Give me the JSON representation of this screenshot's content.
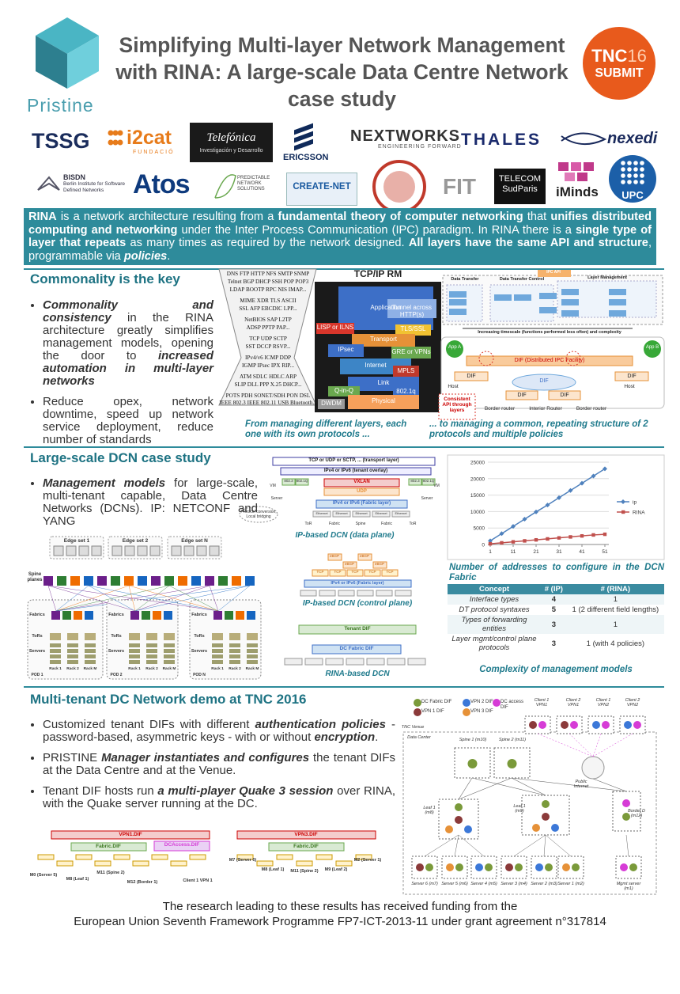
{
  "header": {
    "title": "Simplifying Multi-layer Network Management with RINA: A large-scale Data Centre Network case study",
    "logo": "Pristine",
    "badge": {
      "top": "TNC",
      "number": "16",
      "bottom": "SUBMIT"
    }
  },
  "partners": [
    {
      "name": "TSSG"
    },
    {
      "name": "i2cat",
      "sub": "FUNDACIÓ"
    },
    {
      "name": "Telefónica",
      "sub": "Investigación y Desarrollo"
    },
    {
      "name": "ERICSSON"
    },
    {
      "name": "NEXTWORKS",
      "sub": "ENGINEERING FORWARD"
    },
    {
      "name": "THALES"
    },
    {
      "name": "nexedi"
    },
    {
      "name": "BISDN",
      "sub": "Berlin Institute for Software Defined Networks"
    },
    {
      "name": "Atos"
    },
    {
      "name": "PREDICTABLE NETWORK SOLUTIONS"
    },
    {
      "name": "CREATE-NET"
    },
    {
      "name": "FIT"
    },
    {
      "name": "TELECOM",
      "sub": "SudParis"
    },
    {
      "name": "iMinds"
    },
    {
      "name": "UPC"
    }
  ],
  "intro": [
    {
      "text": "RINA",
      "bold": true
    },
    {
      "text": " is a network architecture resulting from a "
    },
    {
      "text": "fundamental theory of computer networking",
      "bold": true
    },
    {
      "text": " that "
    },
    {
      "text": "unifies distributed computing and networking",
      "bold": true
    },
    {
      "text": " under the Inter Process Communication (IPC) paradigm. In RINA there is a "
    },
    {
      "text": "single type of layer that repeats",
      "bold": true
    },
    {
      "text": " as many times as required by the network designed. "
    },
    {
      "text": "All layers have the same API and structure",
      "bold": true
    },
    {
      "text": ", programmable via "
    },
    {
      "text": "policies",
      "bold": true,
      "italic": true
    },
    {
      "text": "."
    }
  ],
  "commonality": {
    "heading": "Commonality is the key",
    "bullets": [
      [
        {
          "text": "Commonality and consistency",
          "bold": true,
          "italic": true
        },
        {
          "text": " in the RINA architecture greatly simplifies management models, opening the door to "
        },
        {
          "text": "increased automation in multi-layer networks",
          "bold": true,
          "italic": true
        }
      ],
      [
        {
          "text": "Reduce opex, network downtime, speed up network service deployment, reduce number of standards"
        }
      ]
    ],
    "hourglass": [
      "DNS FTP HTTP NFS SMTP SNMP",
      "Telnet BGP DHCP SSH POP POP3",
      "LDAP BOOTP RPC NIS IMAP...",
      "MIME XDR TLS ASCII",
      "SSL AFP EBCDIC LPP...",
      "NetBIOS SAP L2TP",
      "ADSP PPTP PAP...",
      "TCP UDP SCTP",
      "SST DCCP RSVP...",
      "IPv4/v6 ICMP DDP",
      "IGMP IPsec IPX RIP...",
      "ATM SDLC HDLC ARP",
      "SLIP DLL PPP X.25 DHCP...",
      "POTS PDH SONET/SDH PON DSL",
      "IEEE 802.3 IEEE 802.11 USB Bluetooth..."
    ],
    "tcpip": {
      "title": "TCP/IP RM",
      "layers": [
        "Application",
        "Tunnel across HTTP(s)",
        "LISP or ILNS",
        "TLS/SSL",
        "Transport",
        "IPsec",
        "GRE or VPNs",
        "Internet",
        "MPLS",
        "Link",
        "Q-in-Q",
        "802.1q",
        "DWDM",
        "Physical"
      ]
    },
    "rina": [
      "IPC API",
      "Data Transfer",
      "Data Transfer Control",
      "Layer Management",
      "Increasing timescale (functions performed less often) and complexity",
      "App A",
      "App B",
      "DIF (Distributed IPC Facility)",
      "DIF",
      "DIF",
      "DIF",
      "DIF",
      "DIF",
      "Host",
      "Host",
      "Border router",
      "Interior Router",
      "Border router",
      "Consistent API through layers"
    ],
    "captions": [
      "From managing different layers, each one with its own protocols ...",
      "... to managing a common, repeating structure of 2 protocols and multiple policies"
    ]
  },
  "dcn": {
    "heading": "Large-scale DCN case study",
    "bullets": [
      [
        {
          "text": "Management models",
          "bold": true,
          "italic": true
        },
        {
          "text": " for large-scale, multi-tenant capable, Data Centre Networks (DCNs). IP: NETCONF and YANG"
        }
      ]
    ],
    "topology": [
      "Edge set 1",
      "Edge set 2",
      "Edge set N",
      "Spine planes",
      "Fabrics",
      "ToRs",
      "Servers",
      "Rack 1",
      "Rack 2",
      "Rack M",
      "POD 1",
      "POD 2",
      "POD N"
    ],
    "data_plane": {
      "labels": [
        "TCP or UDP or SCTP, ... (transport layer)",
        "IPv4 or IPv6 (tenant overlay)",
        "VXLAN",
        "UDP",
        "IPv4 or IPv6 (Fabric layer)",
        "Protocol conversion; Local bridging",
        "802.3",
        "802.1Q",
        "Server",
        "VM",
        "ToR",
        "Fabric",
        "Spine",
        "Ethernet"
      ],
      "caption": "IP-based DCN (data plane)"
    },
    "control_plane": {
      "labels": [
        "eBGP",
        "TCP",
        "IPv4 or IPv6 (Fabric layer)"
      ],
      "caption": "IP-based DCN (control plane)"
    },
    "rina_dcn": {
      "labels": [
        "Tenant DIF",
        "DC Fabric DIF"
      ],
      "caption": "RINA-based DCN"
    }
  },
  "chart_data": {
    "type": "line",
    "title": "Number of addresses to configure in the DCN Fabric",
    "x": [
      1,
      6,
      11,
      16,
      21,
      26,
      31,
      36,
      41,
      46,
      51
    ],
    "xlim": [
      1,
      51
    ],
    "xticks": [
      1,
      11,
      21,
      31,
      41,
      51
    ],
    "ylim": [
      0,
      25000
    ],
    "yticks": [
      0,
      5000,
      10000,
      15000,
      20000,
      25000
    ],
    "grid": true,
    "legend": "right",
    "series": [
      {
        "name": "ip",
        "color": "#4f81bd",
        "marker": "diamond",
        "values": [
          1100,
          3300,
          5500,
          7700,
          9900,
          12000,
          14200,
          16400,
          18600,
          20800,
          23000
        ]
      },
      {
        "name": "RINA",
        "color": "#c0504d",
        "marker": "square",
        "values": [
          200,
          500,
          800,
          1100,
          1400,
          1700,
          2000,
          2300,
          2600,
          2900,
          3100
        ]
      }
    ]
  },
  "table": {
    "header": [
      "Concept",
      "# (IP)",
      "# (RINA)"
    ],
    "rows": [
      [
        "Interface types",
        4,
        1
      ],
      [
        "DT protocol syntaxes",
        5,
        "1 (2 different field lengths)"
      ],
      [
        "Types of forwarding entities",
        3,
        1
      ],
      [
        "Layer mgmt/control plane protocols",
        3,
        "1 (with 4 policies)"
      ]
    ],
    "caption": "Complexity of management models"
  },
  "demo": {
    "heading": "Multi-tenant DC Network demo at TNC 2016",
    "bullets": [
      [
        {
          "text": "Customized tenant DIFs with different "
        },
        {
          "text": "authentication policies",
          "bold": true,
          "italic": true
        },
        {
          "text": " - password-based, asymmetric keys - with or without "
        },
        {
          "text": "encryption",
          "bold": true,
          "italic": true
        },
        {
          "text": "."
        }
      ],
      [
        {
          "text": "PRISTINE "
        },
        {
          "text": "Manager instantiates and configures",
          "bold": true,
          "italic": true
        },
        {
          "text": " the tenant DIFs at the Data Centre and at the Venue."
        }
      ],
      [
        {
          "text": "Tenant DIF hosts run "
        },
        {
          "text": "a multi-player Quake 3 session",
          "bold": true,
          "italic": true
        },
        {
          "text": " over RINA, with the Quake server running at the DC."
        }
      ]
    ],
    "vpn1": [
      "VPN1.DIF",
      "Fabric.DIF",
      "DCAccess.DIF",
      "M0 (Server 5)",
      "M8 (Leaf 1)",
      "M11 (Spine 2)",
      "M12 (Border 1)",
      "Client 1 VPN 1"
    ],
    "vpn3": [
      "VPN3.DIF",
      "Fabric.DIF",
      "M7 (Server 6)",
      "M8 (Leaf 1)",
      "M11 (Spine 2)",
      "M9 (Leaf 2)",
      "M2 (Server 1)"
    ],
    "network": {
      "legend": [
        {
          "name": "DC Fabric DIF",
          "color": "#7a9a3a"
        },
        {
          "name": "VPN 1 DIF",
          "color": "#8b3a3a"
        },
        {
          "name": "VPN 2 DIF",
          "color": "#3c78d8"
        },
        {
          "name": "VPN 3 DIF",
          "color": "#e69138"
        },
        {
          "name": "DC access DIF",
          "color": "#d63cd6"
        }
      ],
      "labels": [
        "Client 1 VPN1",
        "Client 2 VPN1",
        "Client 1 VPN2",
        "Client 2 VPN2",
        "TNC Venue",
        "Data Center",
        "Spine 1 (m10)",
        "Spine 2 (m11)",
        "Public Internet",
        "Leaf 1 (m8)",
        "Leaf 1 (m9)",
        "Border D (m12)",
        "Server 6 (m7)",
        "Server 5 (m6)",
        "Server 4 (m5)",
        "Server 3 (m4)",
        "Server 2 (m3)",
        "Server 1 (m2)",
        "Mgmt server (m1)"
      ]
    }
  },
  "footer": [
    "The research leading to these results has received funding from the",
    "European Union Seventh Framework Programme FP7-ICT-2013-11 under grant agreement n°317814"
  ]
}
